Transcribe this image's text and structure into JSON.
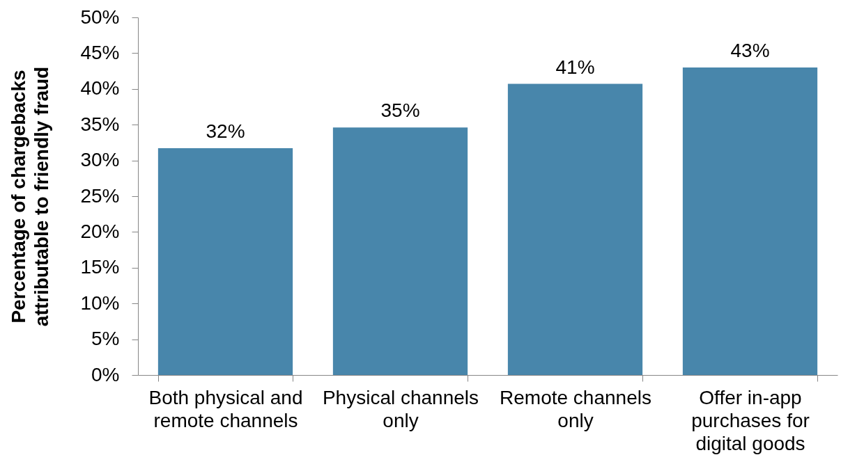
{
  "chart_data": {
    "type": "bar",
    "ylabel": "Percentage of chargebacks attributable to friendly fraud",
    "categories": [
      "Both physical and remote channels",
      "Physical channels only",
      "Remote channels only",
      "Offer in-app purchases for digital goods"
    ],
    "values": [
      31.7,
      34.6,
      40.7,
      43.0
    ],
    "value_labels": [
      "32%",
      "35%",
      "41%",
      "43%"
    ],
    "color": "#4886ab",
    "ylim": [
      0,
      50
    ],
    "yticks": [
      {
        "value": 0,
        "label": "0%"
      },
      {
        "value": 5,
        "label": "5%"
      },
      {
        "value": 10,
        "label": "10%"
      },
      {
        "value": 15,
        "label": "15%"
      },
      {
        "value": 20,
        "label": "20%"
      },
      {
        "value": 25,
        "label": "25%"
      },
      {
        "value": 30,
        "label": "30%"
      },
      {
        "value": 35,
        "label": "35%"
      },
      {
        "value": 40,
        "label": "40%"
      },
      {
        "value": 45,
        "label": "45%"
      },
      {
        "value": 50,
        "label": "50%"
      }
    ],
    "grid": false
  }
}
